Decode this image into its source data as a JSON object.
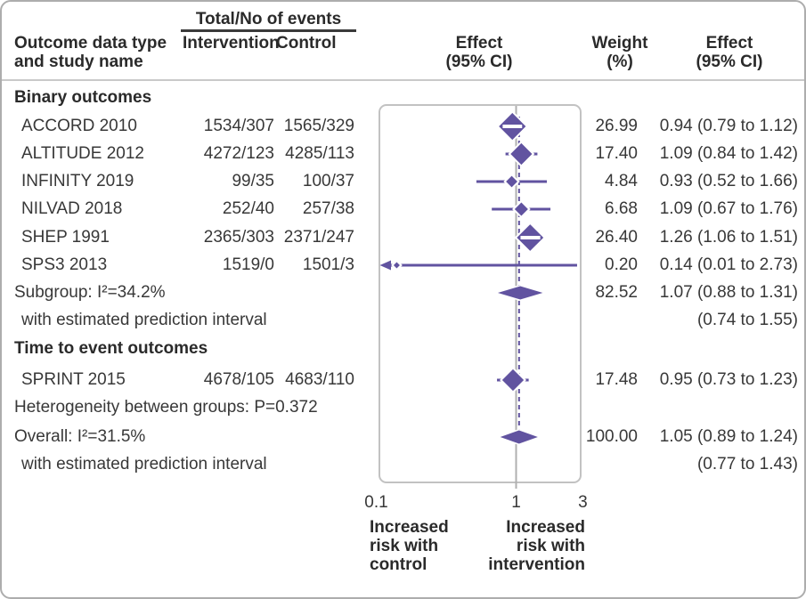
{
  "figure": {
    "header": {
      "events_header": "Total/No of events",
      "outcome_col_line1": "Outcome data type",
      "outcome_col_line2": "and study name",
      "intervention_col": "Intervention",
      "control_col": "Control",
      "effect_col_line1": "Effect",
      "effect_col_line2": "(95% CI)",
      "weight_col_line1": "Weight",
      "weight_col_line2": "(%)"
    },
    "axis_notes": {
      "left": [
        "Increased",
        "risk with",
        "control"
      ],
      "right": [
        "Increased",
        "risk with",
        "intervention"
      ]
    },
    "colors": {
      "accent": "#6153a0",
      "null_line": "#b0b0b0",
      "panel_border": "#c2c2c2",
      "text": "#383838"
    }
  },
  "chart_data": {
    "type": "forest",
    "x_scale": "log10",
    "x_ticks": [
      0.1,
      1,
      3
    ],
    "x_tick_labels": [
      "0.1",
      "1",
      "3"
    ],
    "null_line_value": 1,
    "overall_dashed_line_value": 1.05,
    "rows": [
      {
        "kind": "group",
        "label": "Binary outcomes"
      },
      {
        "kind": "study",
        "label": "ACCORD 2010",
        "intervention": "1534/307",
        "control": "1565/329",
        "weight": 26.99,
        "weight_text": "26.99",
        "effect": 0.94,
        "ci_low": 0.79,
        "ci_high": 1.12,
        "effect_text": "0.94 (0.79 to 1.12)"
      },
      {
        "kind": "study",
        "label": "ALTITUDE 2012",
        "intervention": "4272/123",
        "control": "4285/113",
        "weight": 17.4,
        "weight_text": "17.40",
        "effect": 1.09,
        "ci_low": 0.84,
        "ci_high": 1.42,
        "effect_text": "1.09 (0.84 to 1.42)"
      },
      {
        "kind": "study",
        "label": "INFINITY 2019",
        "intervention": "99/35",
        "control": "100/37",
        "weight": 4.84,
        "weight_text": "4.84",
        "effect": 0.93,
        "ci_low": 0.52,
        "ci_high": 1.66,
        "effect_text": "0.93 (0.52 to 1.66)"
      },
      {
        "kind": "study",
        "label": "NILVAD 2018",
        "intervention": "252/40",
        "control": "257/38",
        "weight": 6.68,
        "weight_text": "6.68",
        "effect": 1.09,
        "ci_low": 0.67,
        "ci_high": 1.76,
        "effect_text": "1.09 (0.67 to 1.76)"
      },
      {
        "kind": "study",
        "label": "SHEP 1991",
        "intervention": "2365/303",
        "control": "2371/247",
        "weight": 26.4,
        "weight_text": "26.40",
        "effect": 1.26,
        "ci_low": 1.06,
        "ci_high": 1.51,
        "effect_text": "1.26 (1.06 to 1.51)"
      },
      {
        "kind": "study",
        "label": "SPS3 2013",
        "intervention": "1519/0",
        "control": "1501/3",
        "weight": 0.2,
        "weight_text": "0.20",
        "effect": 0.14,
        "ci_low": 0.01,
        "ci_high": 2.73,
        "effect_text": "0.14 (0.01 to 2.73)",
        "arrow_low": true
      },
      {
        "kind": "summary",
        "label": "Subgroup: I²=34.2%",
        "weight_text": "82.52",
        "effect": 1.07,
        "ci_low": 0.88,
        "ci_high": 1.31,
        "pi_low": 0.74,
        "pi_high": 1.55,
        "effect_text": "1.07 (0.88 to 1.31)"
      },
      {
        "kind": "note",
        "label": "with estimated prediction interval",
        "effect_text": "(0.74 to 1.55)"
      },
      {
        "kind": "group",
        "label": "Time to event outcomes"
      },
      {
        "kind": "study",
        "label": "SPRINT 2015",
        "intervention": "4678/105",
        "control": "4683/110",
        "weight": 17.48,
        "weight_text": "17.48",
        "effect": 0.95,
        "ci_low": 0.73,
        "ci_high": 1.23,
        "effect_text": "0.95 (0.73 to 1.23)"
      },
      {
        "kind": "note",
        "label": "Heterogeneity between groups: P=0.372",
        "flush": true
      },
      {
        "kind": "summary",
        "label": "Overall: I²=31.5%",
        "weight_text": "100.00",
        "effect": 1.05,
        "ci_low": 0.89,
        "ci_high": 1.24,
        "pi_low": 0.77,
        "pi_high": 1.43,
        "effect_text": "1.05 (0.89 to 1.24)"
      },
      {
        "kind": "note",
        "label": "with estimated prediction interval",
        "effect_text": "(0.77 to 1.43)"
      }
    ]
  }
}
